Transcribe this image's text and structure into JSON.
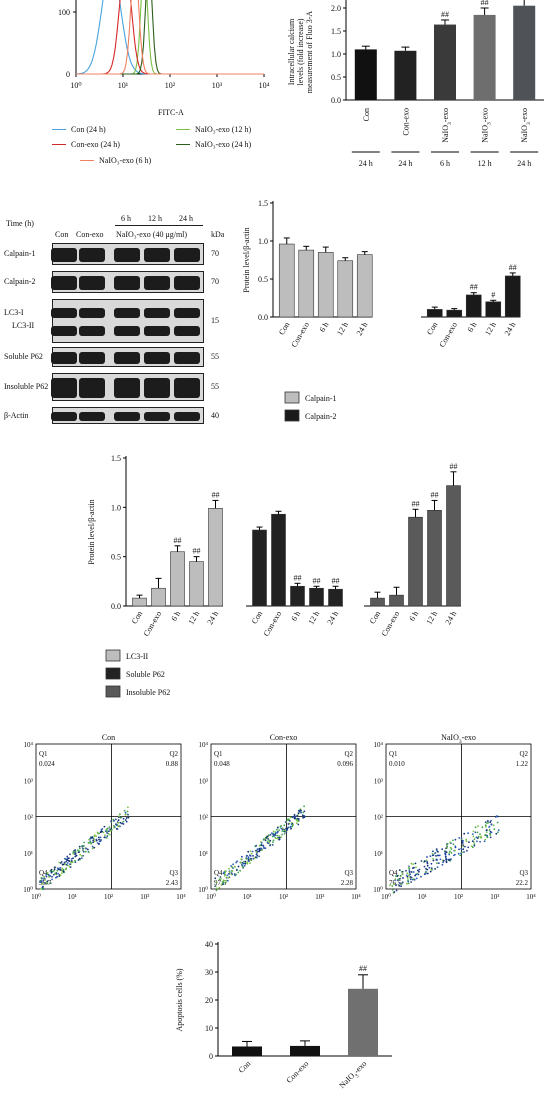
{
  "histogram": {
    "y_tick_top": "100",
    "y_tick_zero": "0",
    "x_ticks": [
      "10⁰",
      "10¹",
      "10²",
      "10³",
      "10⁴"
    ],
    "xlabel": "FITC-A",
    "legend": [
      {
        "label": "Con (24 h)",
        "color": "#4aa3df"
      },
      {
        "label": "NaIO₃-exo (12 h)",
        "color": "#7bc043"
      },
      {
        "label": "Con-exo (24 h)",
        "color": "#d62728"
      },
      {
        "label": "NaIO₃-exo (24 h)",
        "color": "#2b5e1b"
      },
      {
        "label": "NaIO₃-exo (6 h)",
        "color": "#f08060"
      }
    ]
  },
  "calcium_chart": {
    "ylabel_lines": [
      "Intracellular calcium",
      "levels (fold increase)",
      "measurement of Fluo 3-A"
    ],
    "y_ticks": [
      "2.0",
      "1.5",
      "1.0",
      "0.5",
      "0.0"
    ],
    "ylim": [
      0,
      2.0
    ],
    "categories": [
      "Con",
      "Con-exo",
      "NaIO₃-exo",
      "NaIO₃-exo",
      "NaIO₃-exo"
    ],
    "times": [
      "24 h",
      "24 h",
      "6 h",
      "12 h",
      "24 h"
    ],
    "values": [
      1.1,
      1.07,
      1.64,
      1.85,
      2.05
    ],
    "errors": [
      0.07,
      0.08,
      0.1,
      0.15,
      0.15
    ],
    "colors": [
      "#111111",
      "#222222",
      "#3a3a3a",
      "#6e6e6e",
      "#4f5358"
    ],
    "sig": [
      "",
      "",
      "##",
      "##",
      "##"
    ]
  },
  "blot": {
    "header_time": "Time (h)",
    "header_con": "Con",
    "header_conexo": "Con-exo",
    "header_6h": "6 h",
    "header_12h": "12 h",
    "header_24h": "24 h",
    "header_treat": "NaIO₃-exo (40 μg/ml)",
    "header_kda": "kDa",
    "rows": [
      {
        "label": "Calpain-1",
        "kda": "70"
      },
      {
        "label": "Calpain-2",
        "kda": "70"
      },
      {
        "label": "LC3-I",
        "kda": "15"
      },
      {
        "label": "LC3-II",
        "kda": ""
      },
      {
        "label": "Soluble P62",
        "kda": "55"
      },
      {
        "label": "Insoluble P62",
        "kda": "55"
      },
      {
        "label": "β-Actin",
        "kda": "40"
      }
    ]
  },
  "calpain_chart": {
    "ylabel": "Protein level/β-actin",
    "y_ticks": [
      "1.5",
      "1.0",
      "0.5",
      "0.0"
    ],
    "ylim": [
      0,
      1.5
    ],
    "categories": [
      "Con",
      "Con-exo",
      "6 h",
      "12 h",
      "24 h"
    ],
    "series": [
      {
        "name": "Calpain-1",
        "color": "#bdbdbd",
        "values": [
          0.96,
          0.88,
          0.85,
          0.74,
          0.82
        ],
        "errors": [
          0.08,
          0.05,
          0.07,
          0.04,
          0.04
        ],
        "sig": [
          "",
          "",
          "",
          "",
          ""
        ]
      },
      {
        "name": "Calpain-2",
        "color": "#1a1a1a",
        "values": [
          0.1,
          0.09,
          0.29,
          0.2,
          0.54
        ],
        "errors": [
          0.03,
          0.02,
          0.03,
          0.02,
          0.04
        ],
        "sig": [
          "",
          "",
          "##",
          "#",
          "##"
        ]
      }
    ]
  },
  "lc3_chart": {
    "ylabel": "Protein level/β-actin",
    "y_ticks": [
      "1.5",
      "1.0",
      "0.5",
      "0.0"
    ],
    "ylim": [
      0,
      1.5
    ],
    "categories": [
      "Con",
      "Con-exo",
      "6 h",
      "12 h",
      "24 h"
    ],
    "series": [
      {
        "name": "LC3-II",
        "color": "#bdbdbd",
        "values": [
          0.08,
          0.18,
          0.55,
          0.45,
          0.99
        ],
        "errors": [
          0.03,
          0.1,
          0.06,
          0.05,
          0.08
        ],
        "sig": [
          "",
          "",
          "##",
          "##",
          "##"
        ]
      },
      {
        "name": "Soluble P62",
        "color": "#222222",
        "values": [
          0.77,
          0.93,
          0.2,
          0.18,
          0.17
        ],
        "errors": [
          0.03,
          0.03,
          0.03,
          0.02,
          0.03
        ],
        "sig": [
          "",
          "",
          "##",
          "##",
          "##"
        ]
      },
      {
        "name": "Insoluble P62",
        "color": "#5a5a5a",
        "values": [
          0.08,
          0.11,
          0.9,
          0.97,
          1.22
        ],
        "errors": [
          0.06,
          0.08,
          0.08,
          0.1,
          0.14
        ],
        "sig": [
          "",
          "",
          "##",
          "##",
          "##"
        ]
      }
    ]
  },
  "flow": {
    "ticks_y": [
      "10⁴",
      "10³",
      "10²",
      "10¹",
      "10⁰"
    ],
    "ticks_x": [
      "10⁰",
      "10¹",
      "10²",
      "10³",
      "10⁴"
    ],
    "plots": [
      {
        "title": "Con",
        "q1": "Q1",
        "q1v": "0.024",
        "q2": "Q2",
        "q2v": "0.88",
        "q3": "Q3",
        "q3v": "2.43",
        "q4": "Q4",
        "q4v": "96.7"
      },
      {
        "title": "Con-exo",
        "q1": "Q1",
        "q1v": "0.048",
        "q2": "Q2",
        "q2v": "0.096",
        "q3": "Q3",
        "q3v": "2.28",
        "q4": "Q4",
        "q4v": "97.6"
      },
      {
        "title": "NaIO₃-exo",
        "q1": "Q1",
        "q1v": "0.010",
        "q2": "Q2",
        "q2v": "1.22",
        "q3": "Q3",
        "q3v": "22.2",
        "q4": "Q4",
        "q4v": "76.5"
      }
    ]
  },
  "apoptosis_chart": {
    "ylabel": "Apoptosis cells (%)",
    "y_ticks": [
      "40",
      "30",
      "20",
      "10",
      "0"
    ],
    "ylim": [
      0,
      40
    ],
    "categories": [
      "Con",
      "Con-exo",
      "NaIO₃-exo"
    ],
    "values": [
      3.4,
      3.6,
      24
    ],
    "errors": [
      1.8,
      1.8,
      5
    ],
    "colors": [
      "#111111",
      "#111111",
      "#707070"
    ],
    "sig": [
      "",
      "",
      "##"
    ]
  },
  "chart_data": [
    {
      "type": "bar",
      "title": "",
      "ylabel": "Intracellular calcium levels (fold increase) measurement of Fluo 3-A",
      "categories": [
        "Con",
        "Con-exo",
        "NaIO₃-exo 6 h",
        "NaIO₃-exo 12 h",
        "NaIO₃-exo 24 h"
      ],
      "values": [
        1.1,
        1.07,
        1.64,
        1.85,
        2.05
      ],
      "ylim": [
        0,
        2.0
      ]
    },
    {
      "type": "bar",
      "ylabel": "Protein level/β-actin",
      "categories": [
        "Con",
        "Con-exo",
        "6 h",
        "12 h",
        "24 h"
      ],
      "series": [
        {
          "name": "Calpain-1",
          "values": [
            0.96,
            0.88,
            0.85,
            0.74,
            0.82
          ]
        },
        {
          "name": "Calpain-2",
          "values": [
            0.1,
            0.09,
            0.29,
            0.2,
            0.54
          ]
        }
      ],
      "ylim": [
        0,
        1.5
      ]
    },
    {
      "type": "bar",
      "ylabel": "Protein level/β-actin",
      "categories": [
        "Con",
        "Con-exo",
        "6 h",
        "12 h",
        "24 h"
      ],
      "series": [
        {
          "name": "LC3-II",
          "values": [
            0.08,
            0.18,
            0.55,
            0.45,
            0.99
          ]
        },
        {
          "name": "Soluble P62",
          "values": [
            0.77,
            0.93,
            0.2,
            0.18,
            0.17
          ]
        },
        {
          "name": "Insoluble P62",
          "values": [
            0.08,
            0.11,
            0.9,
            0.97,
            1.22
          ]
        }
      ],
      "ylim": [
        0,
        1.5
      ]
    },
    {
      "type": "bar",
      "ylabel": "Apoptosis cells (%)",
      "categories": [
        "Con",
        "Con-exo",
        "NaIO₃-exo"
      ],
      "values": [
        3.4,
        3.6,
        24
      ],
      "ylim": [
        0,
        40
      ]
    }
  ]
}
